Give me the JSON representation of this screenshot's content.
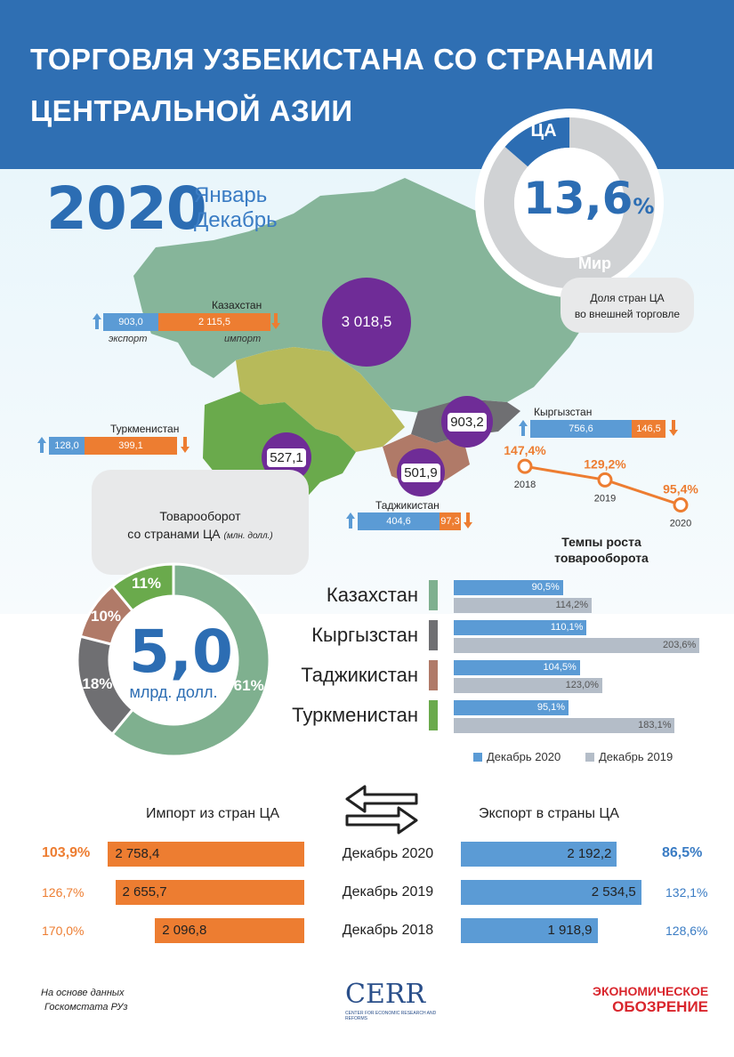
{
  "header": {
    "title_line1": "ТОРГОВЛЯ УЗБЕКИСТАНА СО СТРАНАМИ",
    "title_line2": "ЦЕНТРАЛЬНОЙ АЗИИ"
  },
  "period": {
    "year": "2020",
    "month_from": "Январь",
    "month_to": "Декабрь"
  },
  "world_share": {
    "ca_label": "ЦА",
    "world_label": "Мир",
    "value_text": "13,6",
    "unit": "%",
    "share": 0.136,
    "note_line1": "Доля стран ЦА",
    "note_line2": "во внешней торговле"
  },
  "map": {
    "kazakhstan": {
      "name": "Казахстан",
      "export": "903,0",
      "import": "2 115,5",
      "export_label": "экспорт",
      "import_label": "импорт",
      "turnover": "3 018,5"
    },
    "kyrgyzstan": {
      "name": "Кыргызстан",
      "export": "756,6",
      "import": "146,5",
      "turnover": "903,2"
    },
    "tajikistan": {
      "name": "Таджикистан",
      "export": "404,6",
      "import": "97,3",
      "turnover": "501,9"
    },
    "turkmenistan": {
      "name": "Туркменистан",
      "export": "128,0",
      "import": "399,1",
      "turnover": "527,1"
    }
  },
  "turnover_note": {
    "line1": "Товарооборот",
    "line2": "со странами ЦА",
    "unit": "(млн. долл.)"
  },
  "growth_line": {
    "title_line1": "Темпы роста",
    "title_line2": "товарооборота",
    "points": [
      {
        "year": "2018",
        "label": "147,4%",
        "value": 147.4
      },
      {
        "year": "2019",
        "label": "129,2%",
        "value": 129.2
      },
      {
        "year": "2020",
        "label": "95,4%",
        "value": 95.4
      }
    ]
  },
  "donut": {
    "center_value": "5,0",
    "center_unit": "млрд. долл.",
    "slices": [
      {
        "name": "Казахстан",
        "label": "61%",
        "value": 61,
        "color": "#7fb08f"
      },
      {
        "name": "Кыргызстан",
        "label": "18%",
        "value": 18,
        "color": "#6f6f72"
      },
      {
        "name": "Таджикистан",
        "label": "10%",
        "value": 10,
        "color": "#b07a68"
      },
      {
        "name": "Туркменистан",
        "label": "11%",
        "value": 11,
        "color": "#6aaa4c"
      }
    ]
  },
  "chart_data": [
    {
      "type": "bar",
      "categories": [
        "Казахстан",
        "Кыргызстан",
        "Таджикистан",
        "Туркменистан"
      ],
      "series": [
        {
          "name": "Декабрь 2020",
          "values": [
            90.5,
            110.1,
            104.5,
            95.1
          ],
          "labels": [
            "90,5%",
            "110,1%",
            "104,5%",
            "95,1%"
          ],
          "color": "#5b9bd5"
        },
        {
          "name": "Декабрь 2019",
          "values": [
            114.2,
            203.6,
            123.0,
            183.1
          ],
          "labels": [
            "114,2%",
            "203,6%",
            "123,0%",
            "183,1%"
          ],
          "color": "#b4bdc8"
        }
      ],
      "category_colors": [
        "#7fb08f",
        "#6f6f72",
        "#b07a68",
        "#6aaa4c"
      ],
      "xlim": [
        0,
        210
      ],
      "legend_position": "bottom"
    },
    {
      "type": "bar",
      "title": "Импорт из стран ЦА",
      "categories": [
        "Декабрь 2020",
        "Декабрь 2019",
        "Декабрь 2018"
      ],
      "values": [
        2758.4,
        2655.7,
        2096.8
      ],
      "labels": [
        "2 758,4",
        "2 655,7",
        "2 096,8"
      ],
      "growth": [
        "103,9%",
        "126,7%",
        "170,0%"
      ],
      "color": "#ed7d31"
    },
    {
      "type": "bar",
      "title": "Экспорт в страны ЦА",
      "categories": [
        "Декабрь 2020",
        "Декабрь 2019",
        "Декабрь 2018"
      ],
      "values": [
        2192.2,
        2534.5,
        1918.9
      ],
      "labels": [
        "2 192,2",
        "2 534,5",
        "1 918,9"
      ],
      "growth": [
        "86,5%",
        "132,1%",
        "128,6%"
      ],
      "color": "#5b9bd5"
    }
  ],
  "footer": {
    "source_line1": "На основе данных",
    "source_line2": "Госкомстата РУз",
    "cerr": "CERR",
    "cerr_sub": "CENTER FOR ECONOMIC RESEARCH AND REFORMS",
    "eo_line1": "ЭКОНОМИЧЕСКОЕ",
    "eo_line2": "ОБОЗРЕНИЕ"
  }
}
